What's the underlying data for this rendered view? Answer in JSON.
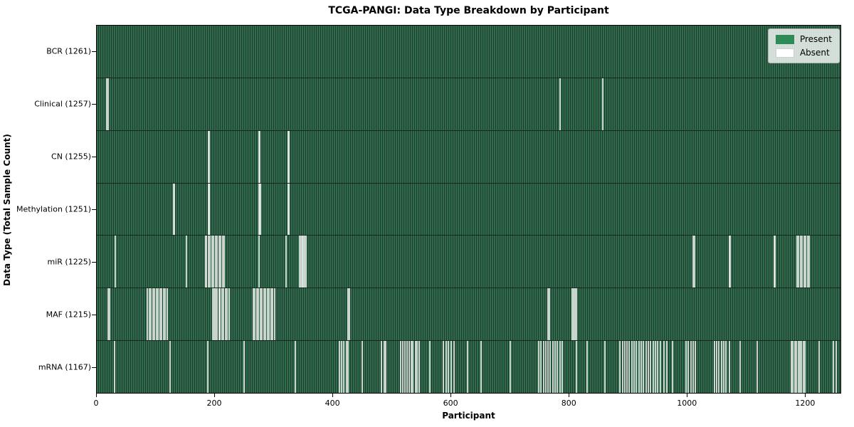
{
  "title": "TCGA-PANGI: Data Type Breakdown by Participant",
  "axes": {
    "x_label": "Participant",
    "y_label": "Data Type (Total Sample Count)"
  },
  "legend": {
    "items": [
      {
        "label": "Present",
        "color": "#2e8b57"
      },
      {
        "label": "Absent",
        "color": "#ffffff"
      }
    ],
    "position": "upper right"
  },
  "chart_data": {
    "type": "heatmap",
    "title": "TCGA-PANGI: Data Type Breakdown by Participant",
    "xlabel": "Participant",
    "ylabel": "Data Type (Total Sample Count)",
    "xlim": [
      0,
      1261
    ],
    "x_ticks": [
      0,
      200,
      400,
      600,
      800,
      1000,
      1200
    ],
    "total_participants": 1261,
    "grid": false,
    "legend_entries": [
      "Present",
      "Absent"
    ],
    "legend_position": "upper right",
    "colors": {
      "present": "#2e8b57",
      "present_stripe_light": "#306b4d",
      "present_stripe_dark": "#1d3c2c",
      "absent": "#ffffff"
    },
    "rows": [
      {
        "data_type": "BCR",
        "label": "BCR (1261)",
        "present_count": 1261,
        "absent_count": 0,
        "absent_participants": []
      },
      {
        "data_type": "Clinical",
        "label": "Clinical (1257)",
        "present_count": 1257,
        "absent_count": 4,
        "absent_participants": [
          16,
          18,
          784,
          857
        ]
      },
      {
        "data_type": "CN",
        "label": "CN (1255)",
        "present_count": 1255,
        "absent_count": 6,
        "absent_participants": [
          188,
          189,
          274,
          275,
          323,
          324
        ]
      },
      {
        "data_type": "Methylation",
        "label": "Methylation (1251)",
        "present_count": 1251,
        "absent_count": 10,
        "absent_participants": [
          129,
          130,
          188,
          189,
          190,
          274,
          275,
          276,
          323,
          324
        ]
      },
      {
        "data_type": "miR",
        "label": "miR (1225)",
        "present_count": 1225,
        "absent_count": 36,
        "absent_participants": [
          30,
          151,
          183,
          185,
          188,
          191,
          194,
          197,
          200,
          203,
          206,
          209,
          212,
          215,
          274,
          320,
          343,
          345,
          347,
          349,
          351,
          353,
          1010,
          1012,
          1071,
          1073,
          1147,
          1149,
          1186,
          1189,
          1192,
          1195,
          1198,
          1201,
          1204,
          1207
        ]
      },
      {
        "data_type": "MAF",
        "label": "MAF (1215)",
        "present_count": 1215,
        "absent_count": 46,
        "absent_participants": [
          18,
          20,
          85,
          88,
          91,
          94,
          97,
          100,
          103,
          106,
          109,
          112,
          115,
          118,
          195,
          198,
          200,
          203,
          206,
          208,
          211,
          214,
          217,
          220,
          223,
          264,
          267,
          270,
          273,
          276,
          279,
          282,
          285,
          288,
          291,
          294,
          297,
          300,
          425,
          427,
          764,
          766,
          805,
          807,
          810,
          812
        ]
      },
      {
        "data_type": "mRNA",
        "label": "mRNA (1167)",
        "present_count": 1167,
        "absent_count": 94,
        "absent_participants": [
          29,
          123,
          187,
          248,
          336,
          410,
          414,
          418,
          422,
          425,
          449,
          482,
          486,
          489,
          514,
          518,
          521,
          525,
          528,
          532,
          535,
          539,
          542,
          546,
          563,
          587,
          591,
          595,
          600,
          604,
          627,
          651,
          700,
          748,
          752,
          756,
          760,
          764,
          768,
          772,
          776,
          780,
          784,
          788,
          812,
          830,
          860,
          886,
          890,
          894,
          898,
          902,
          906,
          910,
          914,
          918,
          922,
          926,
          930,
          934,
          938,
          942,
          946,
          950,
          955,
          960,
          965,
          975,
          998,
          1002,
          1006,
          1010,
          1014,
          1046,
          1050,
          1054,
          1058,
          1062,
          1066,
          1071,
          1090,
          1119,
          1176,
          1179,
          1182,
          1185,
          1188,
          1191,
          1194,
          1197,
          1200,
          1224,
          1248,
          1252
        ]
      }
    ]
  }
}
